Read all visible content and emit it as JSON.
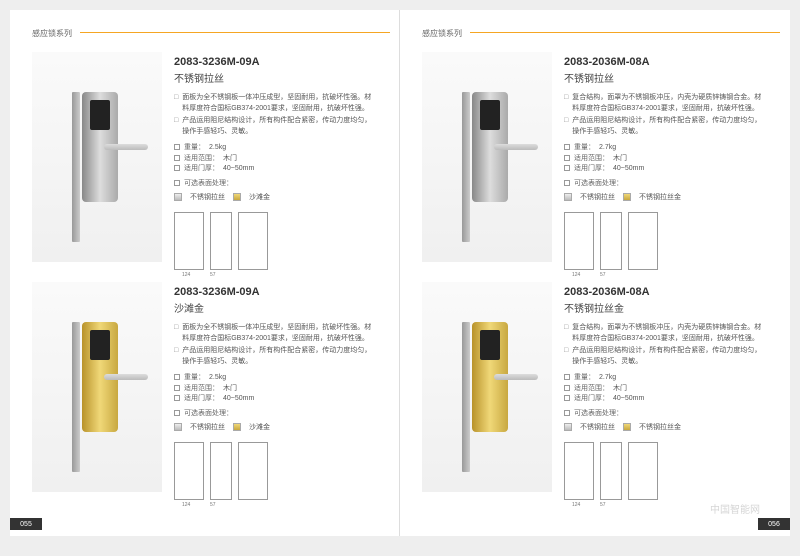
{
  "category": "感应锁系列",
  "pageLeft": "055",
  "pageRight": "056",
  "watermark": "中国智能网",
  "products": [
    {
      "model": "2083-3236M-09A",
      "material": "不锈钢拉丝",
      "finish": "silver",
      "desc1": "面板为全不锈钢板一体冲压成型，坚固耐用，抗破坏性强。材料厚度符合国标GB374-2001要求，坚固耐用，抗破坏性强。",
      "desc2": "产品运用阻尼结构设计，所有构件配合紧密，传动力度均匀，操作手感轻巧、灵敏。",
      "weight": "2.5kg",
      "door": "木门",
      "thickness": "40~50mm",
      "finishLabel": "可选表面处理：",
      "opt1": "不锈钢拉丝",
      "opt2": "沙滩金",
      "dim1": "124",
      "dim2": "57"
    },
    {
      "model": "2083-3236M-09A",
      "material": "沙滩金",
      "finish": "gold",
      "desc1": "面板为全不锈钢板一体冲压成型，坚固耐用，抗破坏性强。材料厚度符合国标GB374-2001要求，坚固耐用，抗破坏性强。",
      "desc2": "产品运用阻尼结构设计，所有构件配合紧密，传动力度均匀，操作手感轻巧、灵敏。",
      "weight": "2.5kg",
      "door": "木门",
      "thickness": "40~50mm",
      "finishLabel": "可选表面处理：",
      "opt1": "不锈钢拉丝",
      "opt2": "沙滩金",
      "dim1": "124",
      "dim2": "57"
    },
    {
      "model": "2083-2036M-08A",
      "material": "不锈钢拉丝",
      "finish": "silver",
      "desc1": "复合结构，面罩为不锈钢板冲压，内壳为硬质锌铸钢合金。材料厚度符合国标GB374-2001要求，坚固耐用，抗破坏性强。",
      "desc2": "产品运用阻尼结构设计，所有构件配合紧密，传动力度均匀，操作手感轻巧、灵敏。",
      "weight": "2.7kg",
      "door": "木门",
      "thickness": "40~50mm",
      "finishLabel": "可选表面处理：",
      "opt1": "不锈钢拉丝",
      "opt2": "不锈钢拉丝金",
      "dim1": "124",
      "dim2": "57"
    },
    {
      "model": "2083-2036M-08A",
      "material": "不锈钢拉丝金",
      "finish": "gold",
      "desc1": "复合结构，面罩为不锈钢板冲压，内壳为硬质锌铸钢合金。材料厚度符合国标GB374-2001要求，坚固耐用，抗破坏性强。",
      "desc2": "产品运用阻尼结构设计，所有构件配合紧密，传动力度均匀，操作手感轻巧、灵敏。",
      "weight": "2.7kg",
      "door": "木门",
      "thickness": "40~50mm",
      "finishLabel": "可选表面处理：",
      "opt1": "不锈钢拉丝",
      "opt2": "不锈钢拉丝金",
      "dim1": "124",
      "dim2": "57"
    }
  ],
  "labels": {
    "weight": "重量：",
    "door": "适用范围：",
    "thickness": "适用门厚："
  }
}
